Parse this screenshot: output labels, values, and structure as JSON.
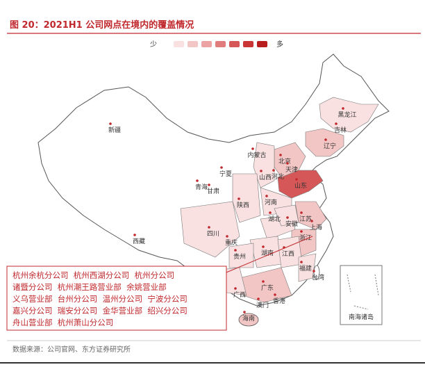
{
  "header": {
    "title": "图 20：2021H1 公司网点在境内的覆盖情况"
  },
  "legend": {
    "low": "少",
    "high": "多",
    "colors": [
      "#f9e1e1",
      "#f3c6c6",
      "#eba3a3",
      "#e07c7c",
      "#d55757",
      "#c93434",
      "#b81d1d"
    ]
  },
  "provinces": [
    "新疆",
    "西藏",
    "青海",
    "甘肃",
    "宁夏",
    "内蒙古",
    "黑龙江",
    "吉林",
    "辽宁",
    "北京",
    "天津",
    "河北",
    "山西",
    "山东",
    "河南",
    "陕西",
    "四川",
    "重庆",
    "湖北",
    "安徽",
    "江苏",
    "上海",
    "浙江",
    "湖南",
    "江西",
    "福建",
    "贵州",
    "广西",
    "广东",
    "海南",
    "澳门",
    "香港",
    "台湾"
  ],
  "inset_label": "南海诸岛",
  "callout": {
    "lines": [
      "杭州余杭分公司  杭州西湖分公司  杭州分公司",
      "诸暨分公司  杭州潮王路营业部  余姚营业部",
      "义乌营业部  台州分公司  温州分公司  宁波分公司",
      "嘉兴分公司  瑞安分公司  金华营业部  绍兴分公司",
      "舟山营业部  杭州萧山分公司"
    ]
  },
  "source": "数据来源：公司官网、东方证券研究所"
}
